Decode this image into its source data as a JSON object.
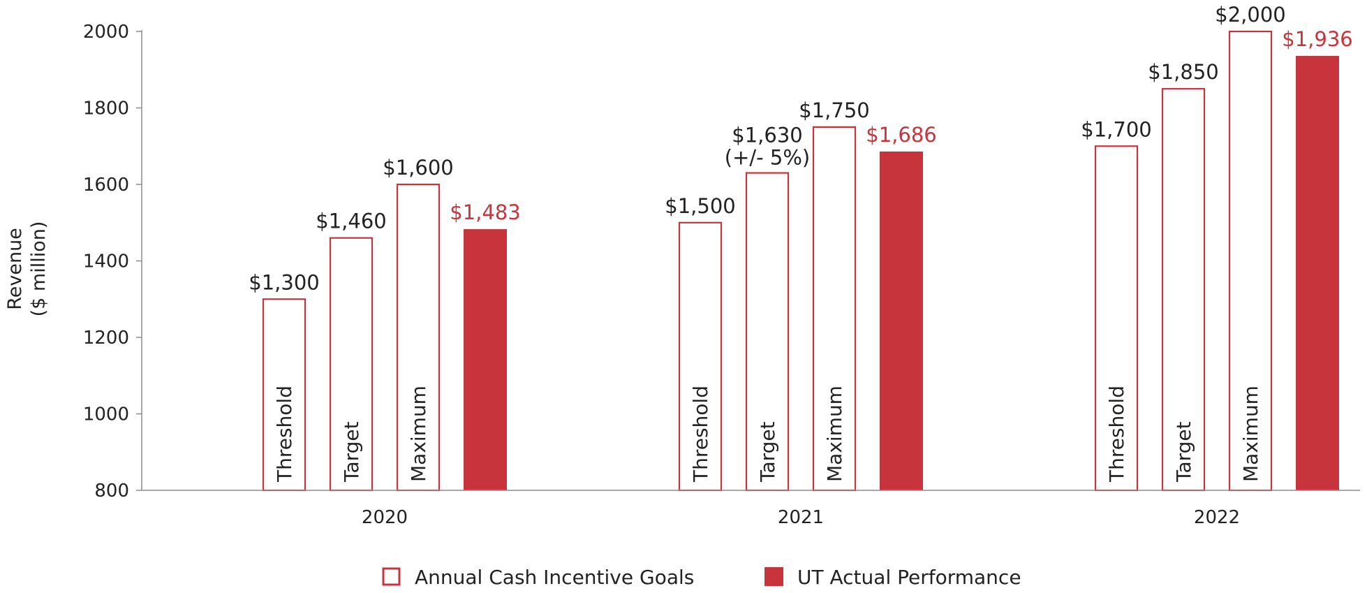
{
  "chart_data": {
    "type": "bar",
    "title": "",
    "ylabel_lines": [
      "Revenue",
      "($ million)"
    ],
    "xlabel": "",
    "ylim": [
      800,
      2000
    ],
    "yticks": [
      800,
      1000,
      1200,
      1400,
      1600,
      1800,
      2000
    ],
    "grid": false,
    "legend_position": "bottom",
    "colors": {
      "goal_stroke": "#c8343c",
      "actual_fill": "#c8343c",
      "axis": "#8c8c8c"
    },
    "categories": [
      "2020",
      "2021",
      "2022"
    ],
    "bar_labels": [
      "Threshold",
      "Target",
      "Maximum"
    ],
    "series": [
      {
        "name": "Annual Cash Incentive Goals",
        "style": "outline",
        "groups": [
          {
            "year": "2020",
            "values": [
              1300,
              1460,
              1600
            ],
            "labels": [
              "$1,300",
              "$1,460",
              "$1,600"
            ]
          },
          {
            "year": "2021",
            "values": [
              1500,
              1630,
              1750
            ],
            "labels": [
              "$1,500",
              "$1,630",
              "$1,750"
            ]
          },
          {
            "year": "2022",
            "values": [
              1700,
              1850,
              2000
            ],
            "labels": [
              "$1,700",
              "$1,850",
              "$2,000"
            ]
          }
        ]
      },
      {
        "name": "UT Actual Performance",
        "style": "filled",
        "values": [
          1483,
          1686,
          1936
        ],
        "labels": [
          "$1,483",
          "$1,686",
          "$1,936"
        ]
      }
    ],
    "annotations": [
      {
        "year": "2021",
        "bar": "Target",
        "text": "(+/- 5%)"
      }
    ]
  }
}
